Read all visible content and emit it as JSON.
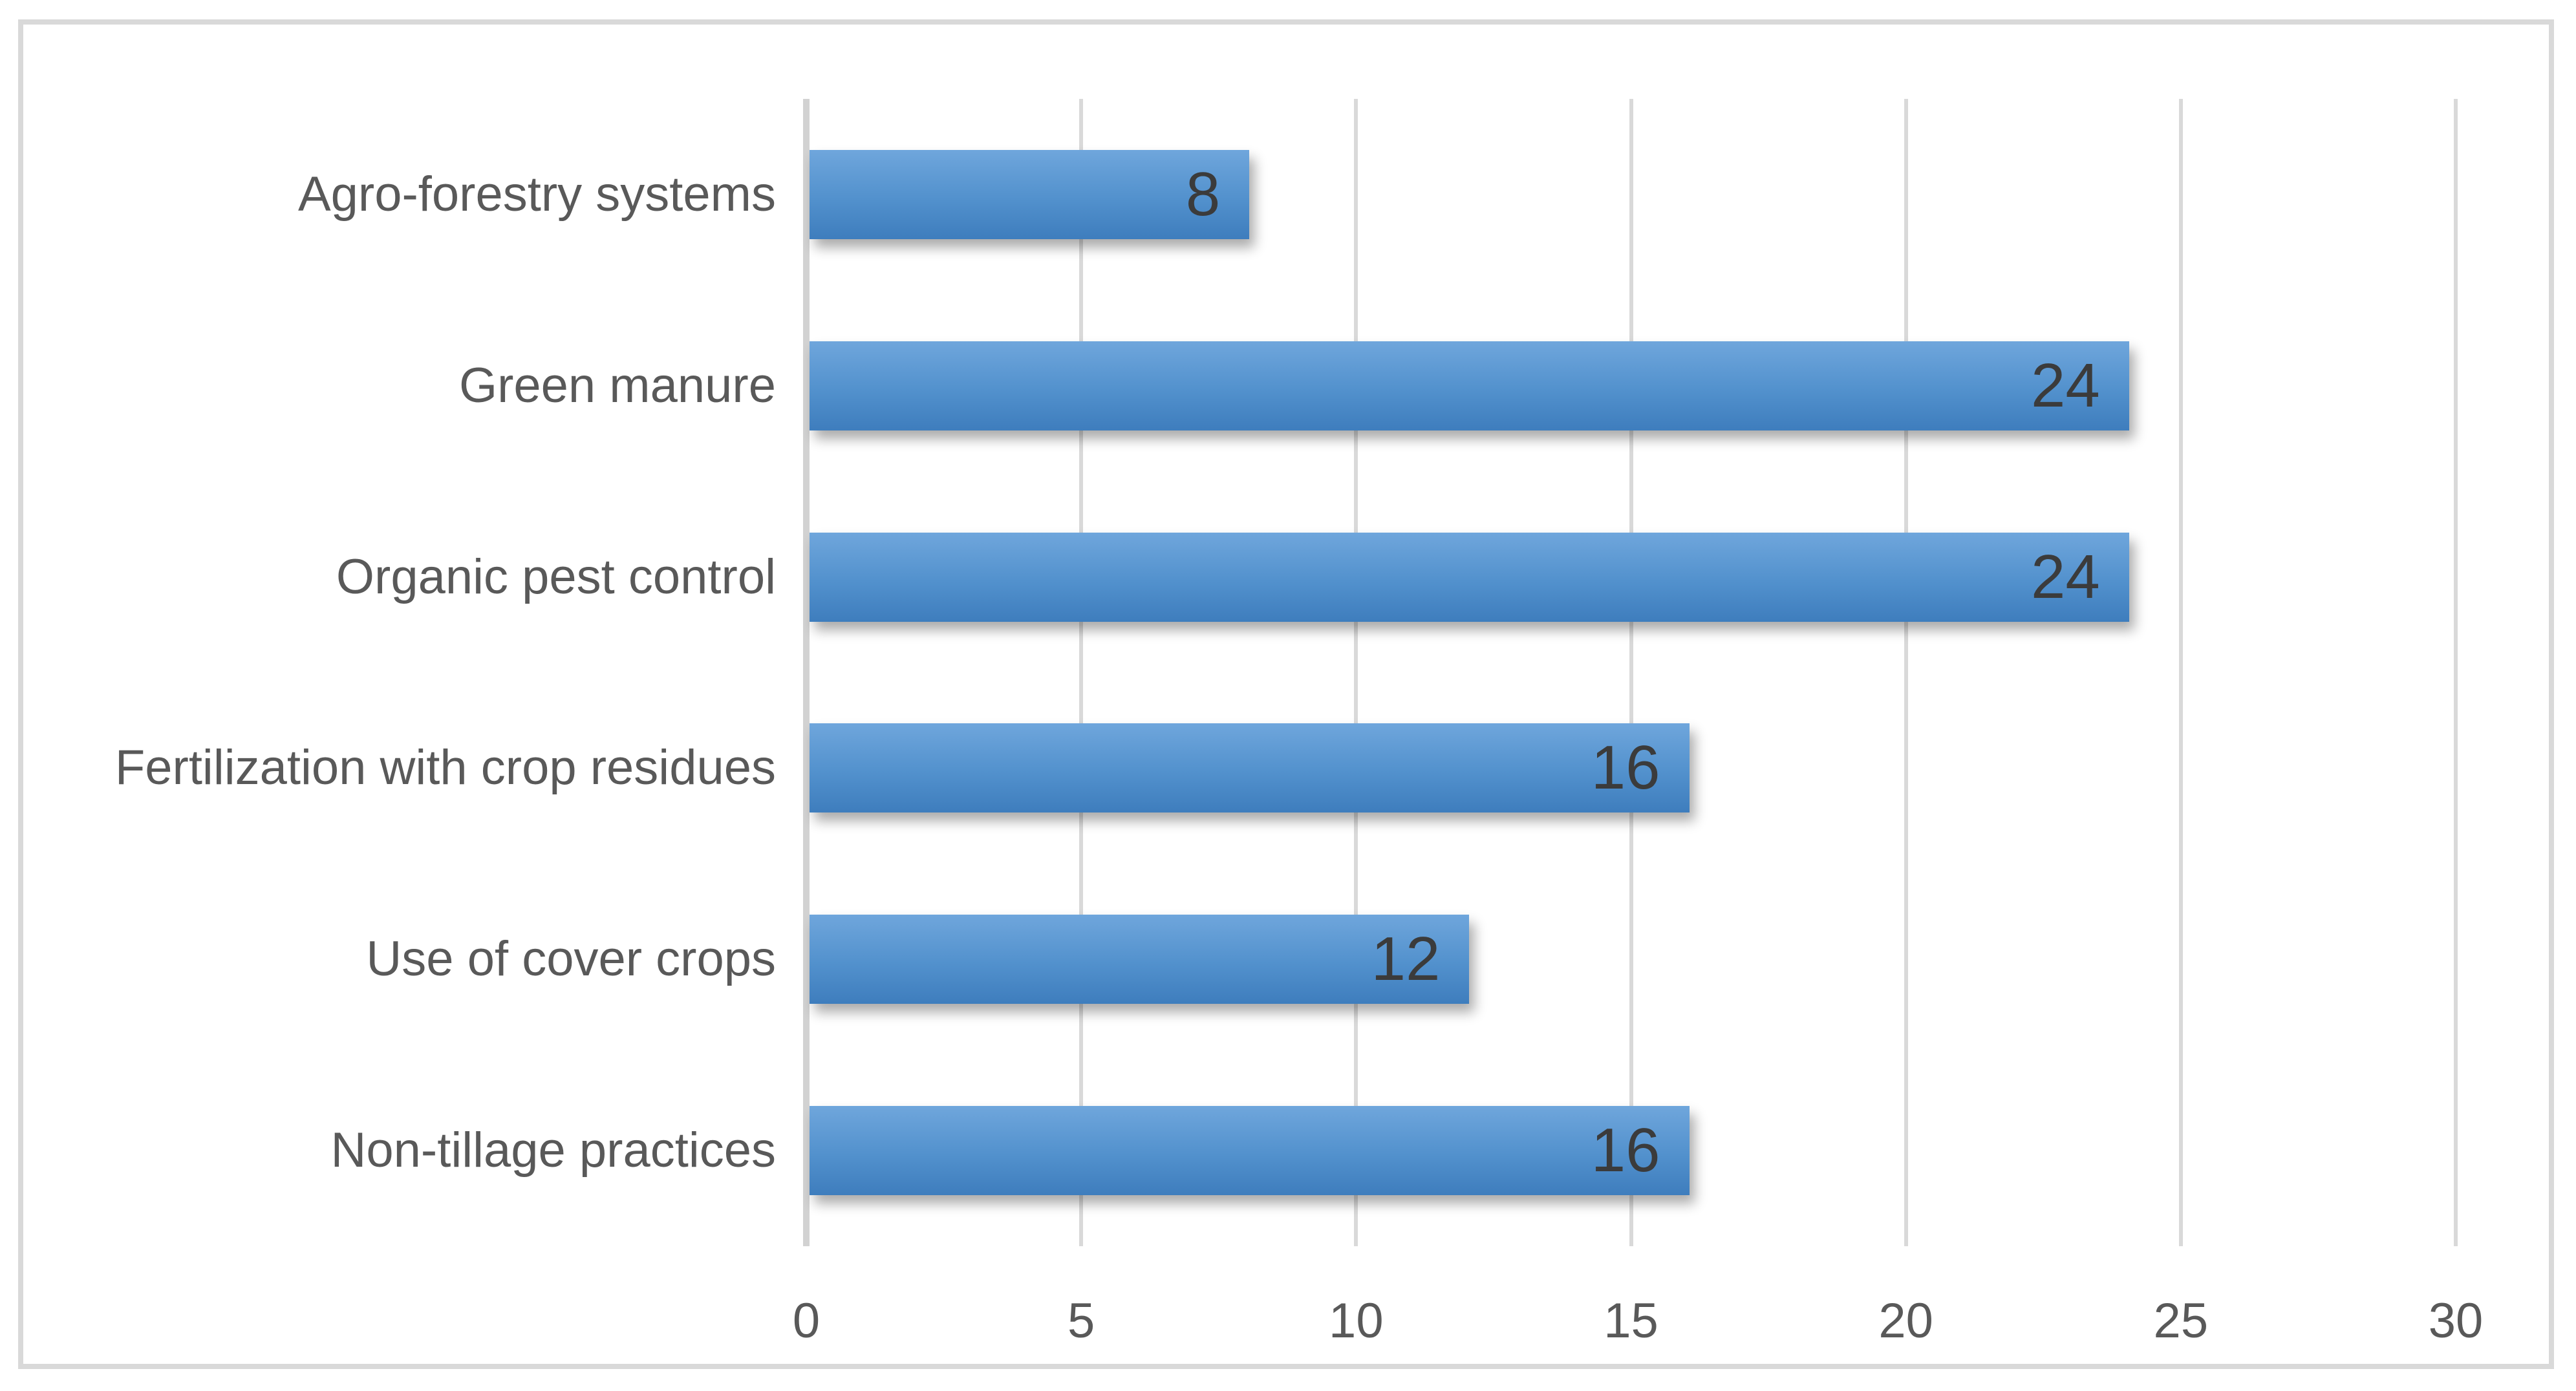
{
  "chart_data": {
    "type": "bar",
    "orientation": "horizontal",
    "title": "",
    "xlabel": "",
    "ylabel": "",
    "categories": [
      "Agro-forestry systems",
      "Green manure",
      "Organic pest control",
      "Fertilization with crop residues",
      "Use of cover crops",
      "Non-tillage practices"
    ],
    "values": [
      8,
      24,
      24,
      16,
      12,
      16
    ],
    "data_labels": [
      "8",
      "24",
      "24",
      "16",
      "12",
      "16"
    ],
    "xlim": [
      0,
      30
    ],
    "xticks": [
      0,
      5,
      10,
      15,
      20,
      25,
      30
    ],
    "grid": "vertical-gridlines-on",
    "legend": "none",
    "colors": {
      "bar_gradient_top": "#6FA6DC",
      "bar_gradient_mid": "#5291CD",
      "bar_gradient_bottom": "#3E7DBD",
      "gridline": "#D9D9D9",
      "axis_line": "#D2D2D2",
      "category_label": "#595959",
      "tick_label": "#595959",
      "value_label": "#3B3B3B",
      "frame_border": "#D9D9D9",
      "background": "#FFFFFF"
    }
  }
}
